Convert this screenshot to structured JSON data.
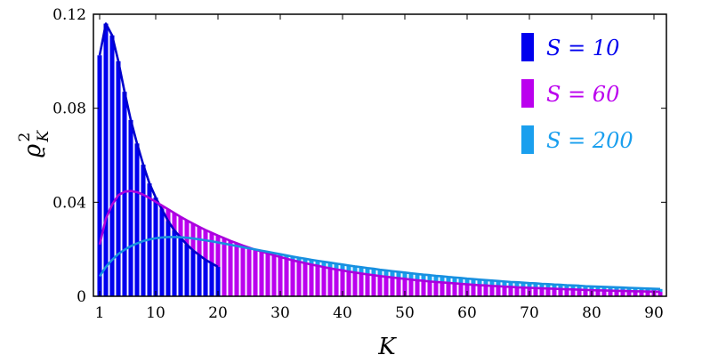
{
  "chart_data": {
    "type": "bar",
    "title": "",
    "xlabel": "K",
    "ylabel": "ϱ²_K",
    "ylabel_main": "ϱ",
    "ylabel_sup": "2",
    "ylabel_sub": "K",
    "xlim": [
      0,
      92
    ],
    "ylim": [
      0,
      0.12
    ],
    "xticks": [
      1,
      10,
      20,
      30,
      40,
      50,
      60,
      70,
      80,
      90
    ],
    "xtick_labels": [
      "1",
      "10",
      "20",
      "30",
      "40",
      "50",
      "60",
      "70",
      "80",
      "90"
    ],
    "yticks": [
      0,
      0.04,
      0.08,
      0.12
    ],
    "ytick_labels": [
      "0",
      "0.04",
      "0.08",
      "0.12"
    ],
    "legend_position": "top-right",
    "series": [
      {
        "name": "S = 10",
        "color": "#0000ee",
        "x": [
          1,
          2,
          3,
          4,
          5,
          6,
          7,
          8,
          9,
          10,
          11,
          12,
          13,
          14,
          15,
          16,
          17,
          18,
          19,
          20
        ],
        "values": [
          0.1025,
          0.116,
          0.111,
          0.1,
          0.087,
          0.075,
          0.065,
          0.056,
          0.048,
          0.042,
          0.037,
          0.032,
          0.028,
          0.025,
          0.022,
          0.0195,
          0.0175,
          0.0155,
          0.014,
          0.0125
        ]
      },
      {
        "name": "S = 60",
        "color": "#bb00ee",
        "x": [
          1,
          2,
          3,
          4,
          5,
          6,
          7,
          8,
          9,
          10,
          11,
          12,
          13,
          14,
          15,
          16,
          17,
          18,
          19,
          20,
          21,
          22,
          23,
          24,
          25,
          26,
          27,
          28,
          29,
          30,
          31,
          32,
          33,
          34,
          35,
          36,
          37,
          38,
          39,
          40,
          41,
          42,
          43,
          44,
          45,
          46,
          47,
          48,
          49,
          50,
          51,
          52,
          53,
          54,
          55,
          56,
          57,
          58,
          59,
          60,
          61,
          62,
          63,
          64,
          65,
          66,
          67,
          68,
          69,
          70,
          71,
          72,
          73,
          74,
          75,
          76,
          77,
          78,
          79,
          80,
          81,
          82,
          83,
          84,
          85,
          86,
          87,
          88,
          89,
          90,
          91
        ],
        "values": [
          0.022,
          0.033,
          0.039,
          0.043,
          0.0445,
          0.0448,
          0.0443,
          0.0432,
          0.0418,
          0.0402,
          0.0386,
          0.037,
          0.0354,
          0.0338,
          0.0323,
          0.0309,
          0.0295,
          0.0282,
          0.027,
          0.0258,
          0.0247,
          0.0236,
          0.0226,
          0.0216,
          0.0207,
          0.0198,
          0.019,
          0.0182,
          0.0174,
          0.0167,
          0.016,
          0.0153,
          0.0147,
          0.0141,
          0.0135,
          0.013,
          0.0124,
          0.0119,
          0.0114,
          0.011,
          0.0105,
          0.0101,
          0.0097,
          0.0093,
          0.009,
          0.0086,
          0.0083,
          0.008,
          0.0077,
          0.0074,
          0.0071,
          0.0068,
          0.0066,
          0.0063,
          0.0061,
          0.0059,
          0.0057,
          0.0055,
          0.0053,
          0.0051,
          0.0049,
          0.0047,
          0.0046,
          0.0044,
          0.0043,
          0.0041,
          0.004,
          0.0038,
          0.0037,
          0.0036,
          0.0035,
          0.0034,
          0.0033,
          0.0032,
          0.0031,
          0.003,
          0.0029,
          0.0028,
          0.0027,
          0.0026,
          0.0025,
          0.0025,
          0.0024,
          0.0023,
          0.0023,
          0.0022,
          0.0021,
          0.0021,
          0.002,
          0.002,
          0.0019
        ]
      },
      {
        "name": "S = 200",
        "color": "#1a9fee",
        "x": [
          1,
          2,
          3,
          4,
          5,
          6,
          7,
          8,
          9,
          10,
          11,
          12,
          13,
          14,
          15,
          16,
          17,
          18,
          19,
          20,
          21,
          22,
          23,
          24,
          25,
          26,
          27,
          28,
          29,
          30,
          31,
          32,
          33,
          34,
          35,
          36,
          37,
          38,
          39,
          40,
          41,
          42,
          43,
          44,
          45,
          46,
          47,
          48,
          49,
          50,
          51,
          52,
          53,
          54,
          55,
          56,
          57,
          58,
          59,
          60,
          61,
          62,
          63,
          64,
          65,
          66,
          67,
          68,
          69,
          70,
          71,
          72,
          73,
          74,
          75,
          76,
          77,
          78,
          79,
          80,
          81,
          82,
          83,
          84,
          85,
          86,
          87,
          88,
          89,
          90,
          91
        ],
        "values": [
          0.0085,
          0.0125,
          0.0155,
          0.018,
          0.0198,
          0.0213,
          0.0225,
          0.0235,
          0.0242,
          0.0247,
          0.025,
          0.0252,
          0.0252,
          0.0251,
          0.0249,
          0.0246,
          0.0242,
          0.0238,
          0.0234,
          0.0229,
          0.0224,
          0.0219,
          0.0214,
          0.0209,
          0.0204,
          0.0199,
          0.0194,
          0.0189,
          0.0184,
          0.0179,
          0.0174,
          0.0169,
          0.0164,
          0.016,
          0.0155,
          0.0151,
          0.0147,
          0.0143,
          0.0139,
          0.0135,
          0.0131,
          0.0127,
          0.0124,
          0.012,
          0.0117,
          0.0113,
          0.011,
          0.0107,
          0.0104,
          0.0101,
          0.0098,
          0.0095,
          0.0092,
          0.009,
          0.0087,
          0.0085,
          0.0082,
          0.008,
          0.0078,
          0.0075,
          0.0073,
          0.0071,
          0.0069,
          0.0067,
          0.0065,
          0.0063,
          0.0061,
          0.006,
          0.0058,
          0.0056,
          0.0055,
          0.0053,
          0.0052,
          0.005,
          0.0049,
          0.0047,
          0.0046,
          0.0045,
          0.0043,
          0.0042,
          0.0041,
          0.004,
          0.0039,
          0.0038,
          0.0037,
          0.0036,
          0.0035,
          0.0034,
          0.0033,
          0.0032,
          0.0031
        ]
      }
    ]
  }
}
